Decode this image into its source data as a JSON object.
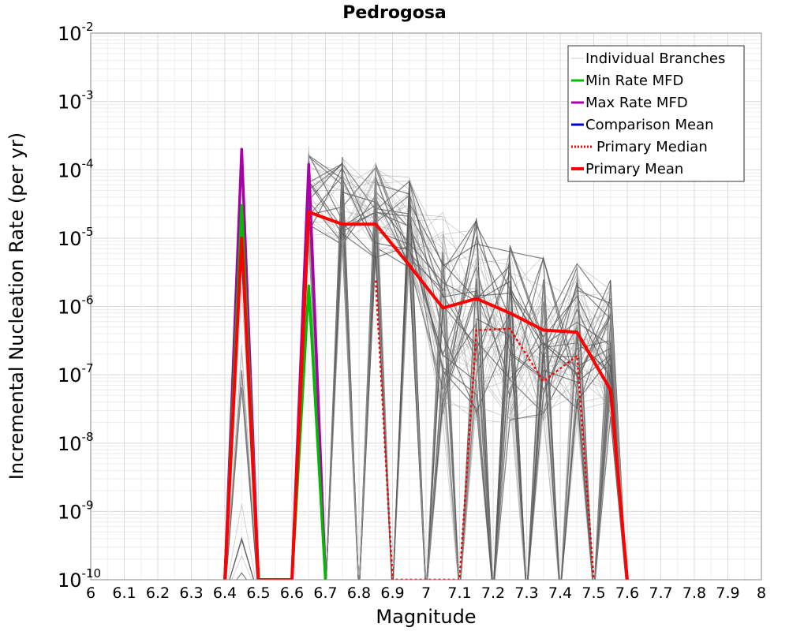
{
  "chart_data": {
    "type": "line",
    "title": "Pedrogosa",
    "xlabel": "Magnitude",
    "ylabel": "Incremental Nucleation Rate (per yr)",
    "xlim": [
      6,
      8
    ],
    "ylim": [
      1e-10,
      0.01
    ],
    "yscale": "log",
    "grid": true,
    "legend_position": "top-right",
    "x_ticks": [
      "6",
      "6.1",
      "6.2",
      "6.3",
      "6.4",
      "6.5",
      "6.6",
      "6.7",
      "6.8",
      "6.9",
      "7",
      "7.1",
      "7.2",
      "7.3",
      "7.4",
      "7.5",
      "7.6",
      "7.7",
      "7.8",
      "7.9",
      "8"
    ],
    "y_ticks": [
      {
        "base": "10",
        "exp": "-2",
        "value": 0.01
      },
      {
        "base": "10",
        "exp": "-3",
        "value": 0.001
      },
      {
        "base": "10",
        "exp": "-4",
        "value": 0.0001
      },
      {
        "base": "10",
        "exp": "-5",
        "value": 1e-05
      },
      {
        "base": "10",
        "exp": "-6",
        "value": 1e-06
      },
      {
        "base": "10",
        "exp": "-7",
        "value": 1e-07
      },
      {
        "base": "10",
        "exp": "-8",
        "value": 1e-08
      },
      {
        "base": "10",
        "exp": "-9",
        "value": 1e-09
      },
      {
        "base": "10",
        "exp": "-10",
        "value": 1e-10
      }
    ],
    "magnitude_bins": [
      6.45,
      6.65,
      6.75,
      6.85,
      6.95,
      7.05,
      7.15,
      7.25,
      7.35,
      7.45,
      7.55
    ],
    "series": [
      {
        "name": "Individual Branches",
        "color": "#999999",
        "style": "thin",
        "count_described": "many",
        "bin_ranges": [
          {
            "x": 6.45,
            "min": 1e-10,
            "max": 0.0001
          },
          {
            "x": 6.65,
            "min": 9e-06,
            "max": 0.00022
          },
          {
            "x": 6.75,
            "min": 7e-06,
            "max": 0.00016
          },
          {
            "x": 6.85,
            "min": 5e-06,
            "max": 0.00015
          },
          {
            "x": 6.95,
            "min": 3.5e-06,
            "max": 8e-05
          },
          {
            "x": 7.05,
            "min": 2e-08,
            "max": 2.5e-05
          },
          {
            "x": 7.15,
            "min": 2e-08,
            "max": 2.5e-05
          },
          {
            "x": 7.25,
            "min": 2e-08,
            "max": 1.4e-05
          },
          {
            "x": 7.35,
            "min": 2e-08,
            "max": 5.5e-06
          },
          {
            "x": 7.45,
            "min": 2e-08,
            "max": 4.8e-06
          },
          {
            "x": 7.55,
            "min": 2e-08,
            "max": 2.5e-06
          }
        ]
      },
      {
        "name": "Min Rate MFD",
        "color": "#00bb00",
        "points": [
          [
            6.4,
            1e-10
          ],
          [
            6.45,
            3e-05
          ],
          [
            6.5,
            1e-10
          ],
          [
            6.6,
            1e-10
          ],
          [
            6.65,
            2e-06
          ],
          [
            6.7,
            1e-10
          ]
        ]
      },
      {
        "name": "Max Rate MFD",
        "color": "#aa00aa",
        "points": [
          [
            6.4,
            1e-10
          ],
          [
            6.45,
            0.0002
          ],
          [
            6.5,
            1e-10
          ],
          [
            6.6,
            1e-10
          ],
          [
            6.65,
            0.00012
          ],
          [
            6.7,
            1e-10
          ]
        ]
      },
      {
        "name": "Comparison Mean",
        "color": "#0000dd",
        "points": []
      },
      {
        "name": "Primary Median",
        "color": "#ff0000",
        "style": "dotted",
        "points": [
          [
            6.85,
            2.4e-06
          ],
          [
            6.9,
            1e-10
          ],
          [
            7.1,
            1e-10
          ],
          [
            7.15,
            4.5e-07
          ],
          [
            7.25,
            4.7e-07
          ],
          [
            7.35,
            8e-08
          ],
          [
            7.45,
            1.9e-07
          ],
          [
            7.5,
            1e-10
          ]
        ]
      },
      {
        "name": "Primary Mean",
        "color": "#ff0000",
        "style": "thick",
        "points": [
          [
            6.4,
            1e-10
          ],
          [
            6.45,
            1e-05
          ],
          [
            6.5,
            1e-10
          ],
          [
            6.6,
            1e-10
          ],
          [
            6.65,
            2.4e-05
          ],
          [
            6.75,
            1.6e-05
          ],
          [
            6.85,
            1.6e-05
          ],
          [
            6.95,
            4e-06
          ],
          [
            7.05,
            9.5e-07
          ],
          [
            7.15,
            1.3e-06
          ],
          [
            7.25,
            8e-07
          ],
          [
            7.35,
            4.5e-07
          ],
          [
            7.45,
            4.2e-07
          ],
          [
            7.55,
            6e-08
          ],
          [
            7.6,
            1e-10
          ]
        ]
      }
    ]
  }
}
